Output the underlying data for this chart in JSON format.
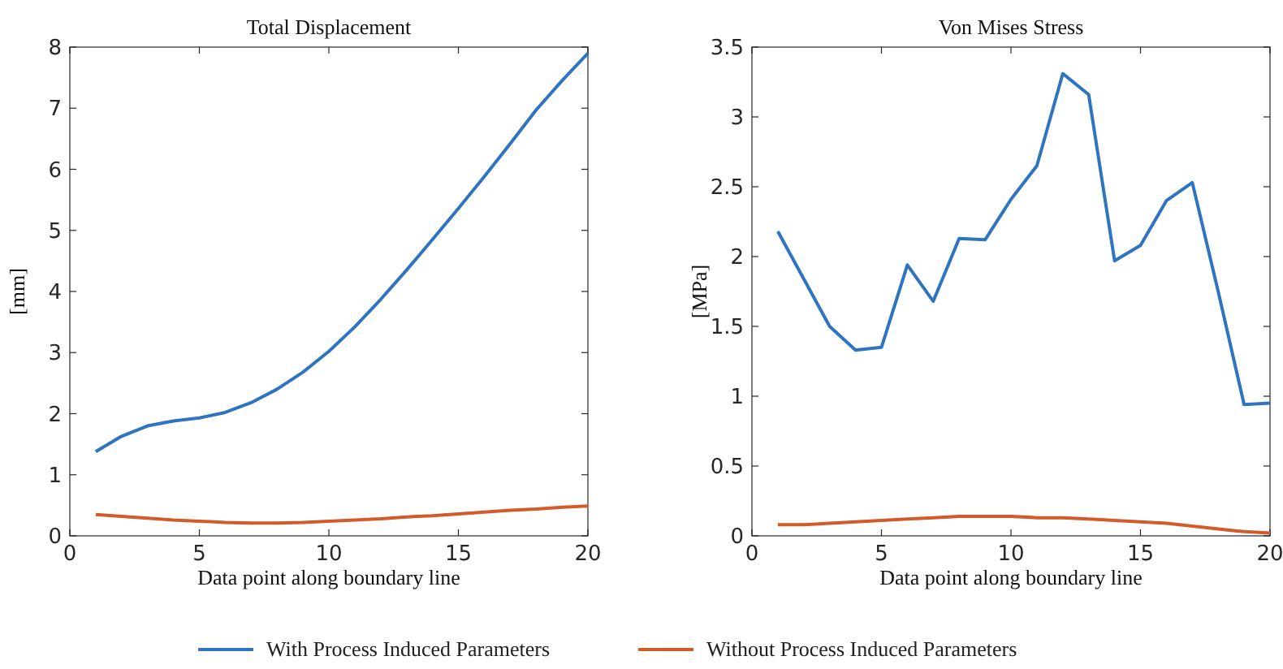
{
  "chart_data": [
    {
      "type": "line",
      "title": "Total Displacement",
      "xlabel": "Data point along boundary line",
      "ylabel": "[mm]",
      "x": [
        1,
        2,
        3,
        4,
        5,
        6,
        7,
        8,
        9,
        10,
        11,
        12,
        13,
        14,
        15,
        16,
        17,
        18,
        19,
        20
      ],
      "xlim": [
        0,
        20
      ],
      "xticks": [
        0,
        5,
        10,
        15,
        20
      ],
      "ylim": [
        0,
        8
      ],
      "yticks": [
        0,
        1,
        2,
        3,
        4,
        5,
        6,
        7,
        8
      ],
      "grid": false,
      "legend": "bottom",
      "series": [
        {
          "name": "With Process Induced Parameters",
          "color": "#2f74c0",
          "values": [
            1.38,
            1.63,
            1.8,
            1.88,
            1.93,
            2.02,
            2.18,
            2.4,
            2.68,
            3.02,
            3.42,
            3.87,
            4.35,
            4.85,
            5.36,
            5.88,
            6.42,
            6.97,
            7.45,
            7.9
          ]
        },
        {
          "name": "Without Process Induced Parameters",
          "color": "#d35a2a",
          "values": [
            0.35,
            0.32,
            0.29,
            0.26,
            0.24,
            0.22,
            0.21,
            0.21,
            0.22,
            0.24,
            0.26,
            0.28,
            0.31,
            0.33,
            0.36,
            0.39,
            0.42,
            0.44,
            0.47,
            0.49
          ]
        }
      ]
    },
    {
      "type": "line",
      "title": "Von Mises Stress",
      "xlabel": "Data point along boundary line",
      "ylabel": "[MPa]",
      "x": [
        1,
        2,
        3,
        4,
        5,
        6,
        7,
        8,
        9,
        10,
        11,
        12,
        13,
        14,
        15,
        16,
        17,
        18,
        19,
        20
      ],
      "xlim": [
        0,
        20
      ],
      "xticks": [
        0,
        5,
        10,
        15,
        20
      ],
      "ylim": [
        0,
        3.5
      ],
      "yticks": [
        0,
        0.5,
        1,
        1.5,
        2,
        2.5,
        3,
        3.5
      ],
      "grid": false,
      "legend": "bottom",
      "series": [
        {
          "name": "With Process Induced Parameters",
          "color": "#2f74c0",
          "values": [
            2.18,
            1.84,
            1.5,
            1.33,
            1.35,
            1.94,
            1.68,
            2.13,
            2.12,
            2.41,
            2.65,
            3.31,
            3.16,
            1.97,
            2.08,
            2.4,
            2.53,
            1.75,
            0.94,
            0.95
          ]
        },
        {
          "name": "Without Process Induced Parameters",
          "color": "#d35a2a",
          "values": [
            0.08,
            0.08,
            0.09,
            0.1,
            0.11,
            0.12,
            0.13,
            0.14,
            0.14,
            0.14,
            0.13,
            0.13,
            0.12,
            0.11,
            0.1,
            0.09,
            0.07,
            0.05,
            0.03,
            0.02
          ]
        }
      ]
    }
  ]
}
